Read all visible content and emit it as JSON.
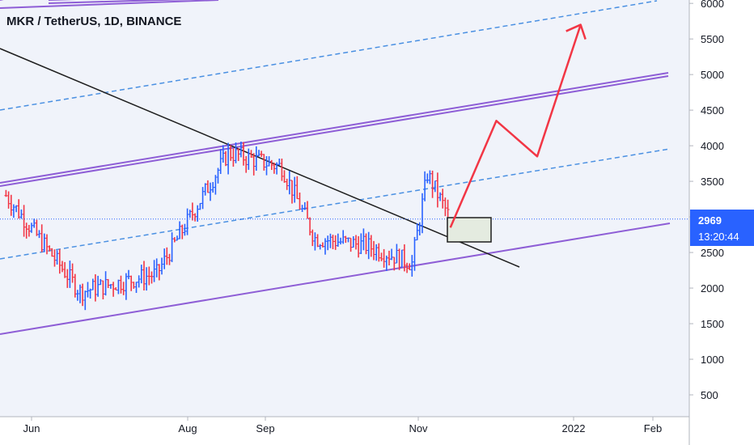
{
  "chart_data": {
    "type": "bar",
    "title": "MKR / TetherUS, 1D, BINANCE",
    "y_ticks": [
      500,
      1000,
      1500,
      2000,
      2500,
      3000,
      3500,
      4000,
      4500,
      5000,
      5500,
      6000
    ],
    "y_tick_labels": [
      "500",
      "1000",
      "1500",
      "2000",
      "2500",
      "3000",
      "3500",
      "4000",
      "4500",
      "5000",
      "5500",
      "6000"
    ],
    "x_tick_labels": [
      "Jun",
      "Aug",
      "Sep",
      "Nov",
      "2022",
      "Feb"
    ],
    "ylim": [
      0,
      6000
    ],
    "current_price": "2969",
    "countdown": "13:20:44",
    "colors": {
      "up": "#2962ff",
      "down": "#f23645",
      "channel": "#8e5ed6",
      "dashed": "#4a90e2",
      "trendline": "#1e1e1e",
      "projection": "#f23645",
      "price_tag": "#2962ff",
      "background": "#f0f3fa"
    },
    "ohlc_samples": [
      {
        "date": "2021-05-22",
        "close": 3300
      },
      {
        "date": "2021-06-20",
        "close": 1950
      },
      {
        "date": "2021-07-20",
        "close": 2200
      },
      {
        "date": "2021-08-17",
        "close": 3900
      },
      {
        "date": "2021-09-07",
        "close": 3700
      },
      {
        "date": "2021-09-20",
        "close": 2700
      },
      {
        "date": "2021-10-10",
        "close": 2600
      },
      {
        "date": "2021-10-28",
        "close": 2350
      },
      {
        "date": "2021-11-03",
        "close": 3600
      },
      {
        "date": "2021-11-12",
        "close": 2969
      }
    ],
    "projection_path": [
      {
        "date": "2021-11-12",
        "value": 2850
      },
      {
        "date": "2021-11-30",
        "value": 4350
      },
      {
        "date": "2021-12-16",
        "value": 3850
      },
      {
        "date": "2022-01-02",
        "value": 5700
      }
    ]
  }
}
